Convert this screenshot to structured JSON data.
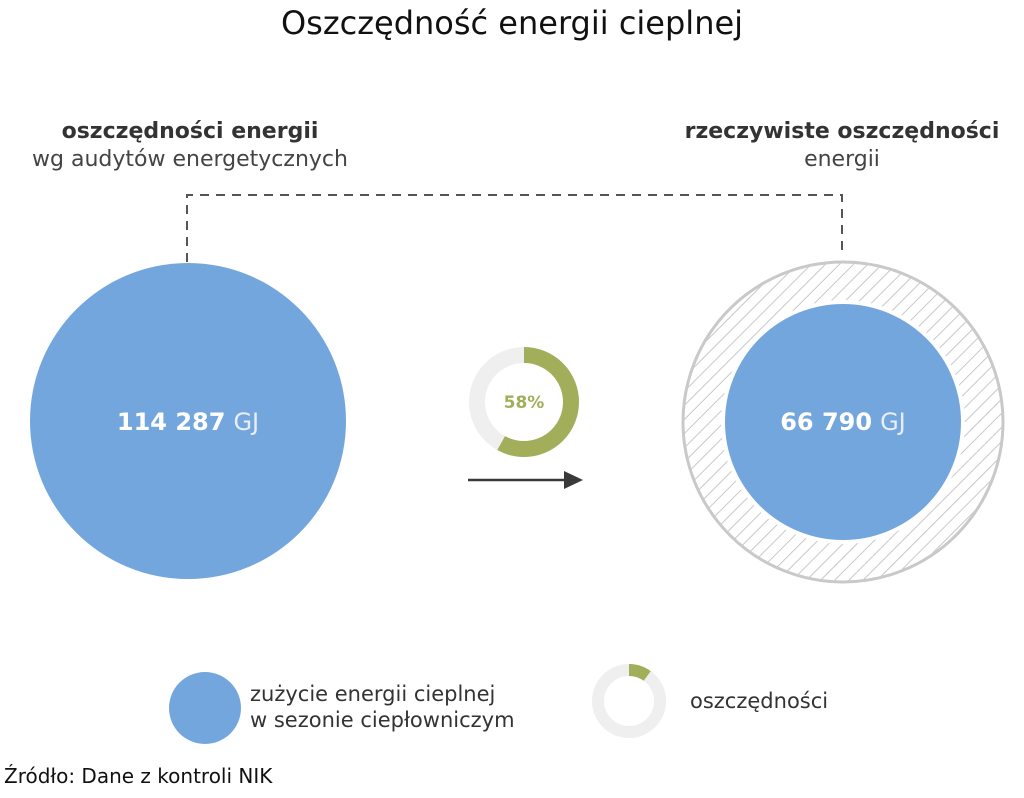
{
  "title": "Oszczędność energii cieplnej",
  "left": {
    "heading_bold": "oszczędności energii",
    "heading_normal": "wg audytów energetycznych",
    "value": "114 287",
    "unit": "GJ"
  },
  "right": {
    "heading_bold": "rzeczywiste oszczędności",
    "heading_normal": "energii",
    "value": "66 790",
    "unit": "GJ"
  },
  "savings_ring": {
    "percent_label": "58%",
    "fraction": 0.58
  },
  "legend": {
    "consumption_line1": "zużycie energii cieplnej",
    "consumption_line2": "w sezonie ciepłowniczym",
    "savings": "oszczędności",
    "savings_fraction": 0.1
  },
  "source": "Źródło: Dane z kontroli NIK",
  "colors": {
    "blue": "#74a6de",
    "green": "#a3ae5a",
    "ring_gray": "#efefef",
    "hatch_gray": "#c8c8c8",
    "arrow": "#3a3a3a"
  }
}
